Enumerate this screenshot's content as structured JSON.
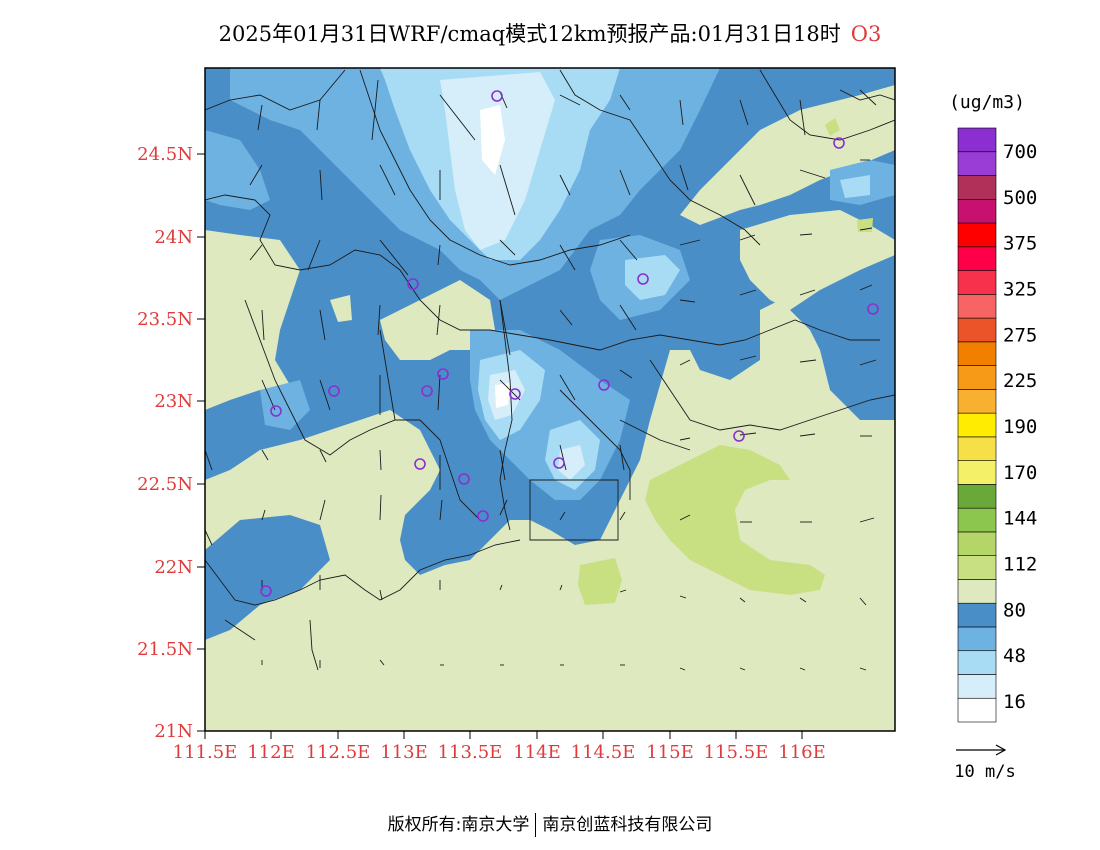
{
  "title": {
    "text": "2025年01月31日WRF/cmaq模式12km预报产品:01月31日18时",
    "species": "O3"
  },
  "map": {
    "lat_labels": [
      "24.5N",
      "24N",
      "23.5N",
      "23N",
      "22.5N",
      "22N",
      "21.5N",
      "21N"
    ],
    "lon_labels": [
      "111.5E",
      "112E",
      "112.5E",
      "113E",
      "113.5E",
      "114E",
      "114.5E",
      "115E",
      "115.5E",
      "116E"
    ],
    "lat_range": [
      21,
      25
    ],
    "lon_range": [
      111.5,
      116.7
    ]
  },
  "legend": {
    "unit": "(ug/m3)",
    "labels": [
      "700",
      "500",
      "375",
      "325",
      "275",
      "225",
      "190",
      "170",
      "144",
      "112",
      "80",
      "48",
      "16"
    ],
    "colors": [
      "#ffffff",
      "#d6eef9",
      "#a8dcf4",
      "#6eb2e2",
      "#4a8ec8",
      "#dfe9c0",
      "#c8df82",
      "#b4d668",
      "#8cc64e",
      "#6aa83a",
      "#f4f068",
      "#f6e048",
      "#ffec00",
      "#f7b030",
      "#f79a18",
      "#f28000",
      "#ea5428",
      "#f66464",
      "#f7304c",
      "#ff0048",
      "#ff0000",
      "#c8106e",
      "#b0305a",
      "#9a3dd6",
      "#8b2fd0"
    ]
  },
  "wind_scale": {
    "label": "10 m/s"
  },
  "credit": {
    "left": "版权所有:南京大学",
    "right": "南京创蓝科技有限公司"
  }
}
